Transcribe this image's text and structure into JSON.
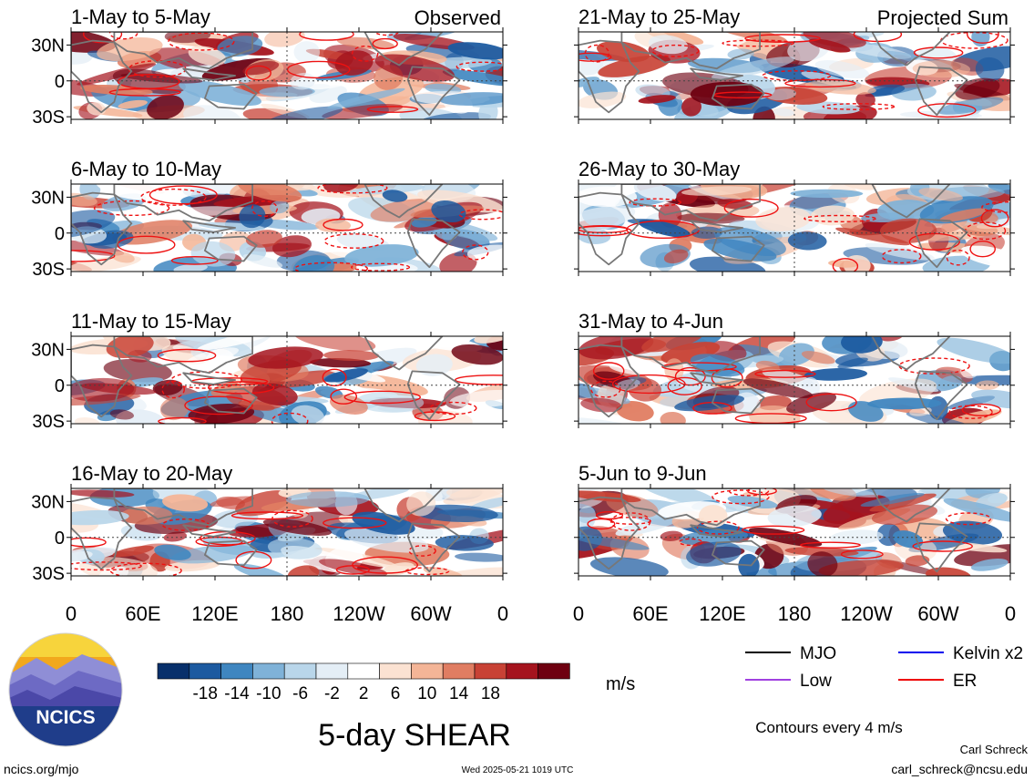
{
  "chart_data": {
    "type": "heatmap",
    "variable": "5-day SHEAR",
    "unit": "m/s",
    "colorbar_ticks": [
      "-18",
      "-14",
      "-10",
      "-6",
      "-2",
      "2",
      "6",
      "10",
      "14",
      "18"
    ],
    "colorbar_colors": [
      "#08306b",
      "#1c5aa0",
      "#3f86c0",
      "#7fb2d8",
      "#b9d6ea",
      "#e4eef6",
      "#ffffff",
      "#fbe2d2",
      "#f4b597",
      "#e07d62",
      "#c84235",
      "#a5141e",
      "#6e0010"
    ],
    "x_tick_labels": [
      "0",
      "60E",
      "120E",
      "180",
      "120W",
      "60W",
      "0"
    ],
    "y_tick_labels": [
      "30N",
      "0",
      "30S"
    ],
    "lat_range": [
      "40S",
      "40N"
    ],
    "lon_range": [
      "0",
      "360"
    ],
    "left_column_label": "Observed",
    "right_column_label": "Projected Sum",
    "panels": [
      {
        "period": "1-May to 5-May",
        "column": "Observed"
      },
      {
        "period": "6-May to 10-May",
        "column": "Observed"
      },
      {
        "period": "11-May to 15-May",
        "column": "Observed"
      },
      {
        "period": "16-May to 20-May",
        "column": "Observed"
      },
      {
        "period": "21-May to 25-May",
        "column": "Projected Sum"
      },
      {
        "period": "26-May to 30-May",
        "column": "Projected Sum"
      },
      {
        "period": "31-May to 4-Jun",
        "column": "Projected Sum"
      },
      {
        "period": "5-Jun to 9-Jun",
        "column": "Projected Sum"
      }
    ],
    "legend": [
      {
        "name": "MJO",
        "color": "#000000"
      },
      {
        "name": "Kelvin x2",
        "color": "#0000ee"
      },
      {
        "name": "Low",
        "color": "#a040e0"
      },
      {
        "name": "ER",
        "color": "#ee0000"
      }
    ],
    "contour_note": "Contours every 4 m/s"
  },
  "footer": {
    "logo_text": "NCICS",
    "url": "ncics.org/mjo",
    "timestamp": "Wed 2025-05-21 1019 UTC",
    "author": "Carl Schreck",
    "email": "carl_schreck@ncsu.edu"
  }
}
